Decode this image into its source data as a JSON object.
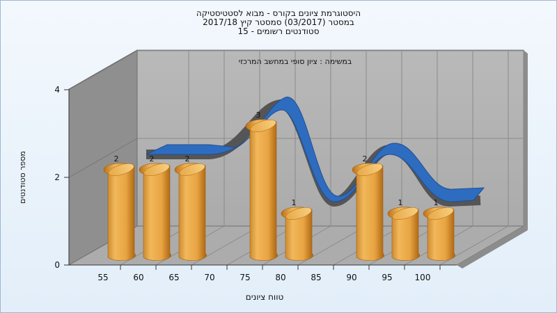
{
  "title_lines": [
    "היסטוגרמת ציונים בקורס - מבוא לסטטיסטיקה",
    "במסטר  (03/2017)  סמסטר קיץ 2017/18",
    "סטודנטים רשומים - 15"
  ],
  "colors": {
    "bar": "#e0a040",
    "curve": "#2e6cc0",
    "wall": "#b3b3b3",
    "left_wall": "#8d8d8d",
    "floor": "#aeaeae"
  },
  "chart_data": {
    "type": "bar",
    "subtitle": "במשימה : ציון סופי במחשב המרכזי",
    "xlabel": "טווח ציונים",
    "ylabel": "מספר סטודנטים",
    "x_ticks": [
      "55",
      "60",
      "65",
      "70",
      "75",
      "80",
      "85",
      "90",
      "95",
      "100"
    ],
    "y_ticks": [
      "0",
      "2",
      "4"
    ],
    "ylim": [
      0,
      4
    ],
    "bars": [
      {
        "x": 55,
        "value": 2
      },
      {
        "x": 60,
        "value": 2
      },
      {
        "x": 65,
        "value": 2
      },
      {
        "x": 75,
        "value": 3
      },
      {
        "x": 80,
        "value": 1
      },
      {
        "x": 90,
        "value": 2
      },
      {
        "x": 95,
        "value": 1
      },
      {
        "x": 100,
        "value": 1
      }
    ],
    "curve": "distribution-ribbon",
    "grid": true
  }
}
